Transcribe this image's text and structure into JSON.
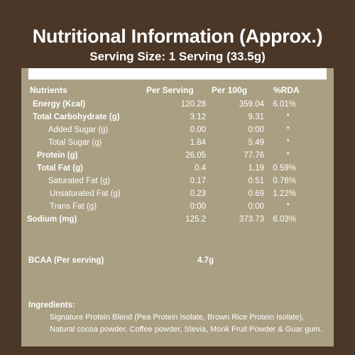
{
  "header": {
    "title": "Nutritional Information (Approx.)",
    "serving_size": "Serving Size: 1 Serving (33.5g)"
  },
  "table": {
    "columns": [
      "Nutrients",
      "Per Serving",
      "Per 100g",
      "%RDA"
    ],
    "rows": [
      {
        "name": "Energy (Kcal)",
        "per_serving": "120.28",
        "per_100g": "359.04",
        "rda": "6.01%",
        "bold": true
      },
      {
        "name": "Total Carbohydrate (g)",
        "per_serving": "3.12",
        "per_100g": "9.31",
        "rda": "*",
        "bold": true
      },
      {
        "name": "Added Sugar (g)",
        "per_serving": "0.00",
        "per_100g": "0:00",
        "rda": "*",
        "bold": false
      },
      {
        "name": "Total Sugar (g)",
        "per_serving": "1.84",
        "per_100g": "5.49",
        "rda": "*",
        "bold": false
      },
      {
        "name": "Protein (g)",
        "per_serving": "26.05",
        "per_100g": "77.76",
        "rda": "*",
        "bold": true
      },
      {
        "name": "Total Fat (g)",
        "per_serving": "0.4",
        "per_100g": "1.19",
        "rda": "0.59%",
        "bold": true
      },
      {
        "name": "Saturated Fat (g)",
        "per_serving": "0.17",
        "per_100g": "0.51",
        "rda": "0.76%",
        "bold": false
      },
      {
        "name": "Unsaturated Fat (g)",
        "per_serving": "0.23",
        "per_100g": "0.69",
        "rda": "1.22%",
        "bold": false
      },
      {
        "name": "Trans Fat (g)",
        "per_serving": "0:00",
        "per_100g": "0:00",
        "rda": "*",
        "bold": false
      },
      {
        "name": "Sodium (mg)",
        "per_serving": "125.2",
        "per_100g": "373.73",
        "rda": "6.03%",
        "bold": true
      }
    ]
  },
  "bcaa": {
    "label": "BCAA (Per serving)",
    "value": "4.7g"
  },
  "ingredients": {
    "title": "Ingredients:",
    "line1": "Signature Protein Blend (Pea Protein Isolate, Brown Rice Protein Isolate),",
    "line2": "Natural cocoa powder, Coffee powder, Stevia, Monk Fruit Powder & Guar gum."
  },
  "colors": {
    "background": "#4a3728",
    "panel": "#aa9f82",
    "text": "#ffffff"
  }
}
